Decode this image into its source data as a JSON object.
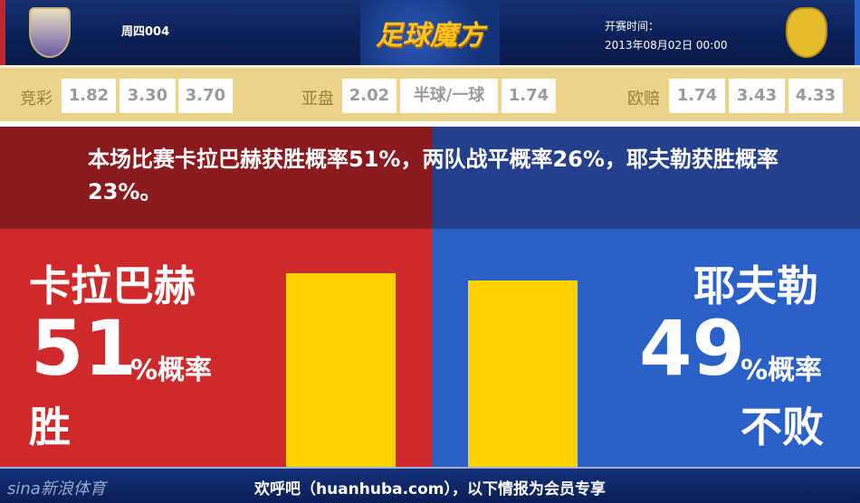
{
  "header": {
    "match_no": "周四004",
    "logo_text": "足球魔方",
    "kickoff_label": "开赛时间：",
    "kickoff_time": "2013年08月02日 00:00",
    "home_crest": "team-crest",
    "away_crest": "team-crest"
  },
  "odds": {
    "jingcai": {
      "label": "竞彩",
      "values": [
        "1.82",
        "3.30",
        "3.70"
      ]
    },
    "yapan": {
      "label": "亚盘",
      "values": [
        "2.02",
        "半球/一球",
        "1.74"
      ]
    },
    "oupei": {
      "label": "欧赔",
      "values": [
        "1.74",
        "3.43",
        "4.33"
      ]
    }
  },
  "summary": "本场比赛卡拉巴赫获胜概率51%，两队战平概率26%，耶夫勒获胜概率23%。",
  "home": {
    "team": "卡拉巴赫",
    "percent": "51",
    "unit": "%概率",
    "outcome": "胜",
    "bar_value": 51
  },
  "away": {
    "team": "耶夫勒",
    "percent": "49",
    "unit": "%概率",
    "outcome": "不败",
    "bar_value": 49
  },
  "colors": {
    "home": "#cf2a2b",
    "away": "#2b60c9",
    "bar": "#ffd200"
  },
  "footer": {
    "brand": "sina新浪体育",
    "text": "欢呼吧（huanhuba.com），以下情报为会员专享"
  }
}
